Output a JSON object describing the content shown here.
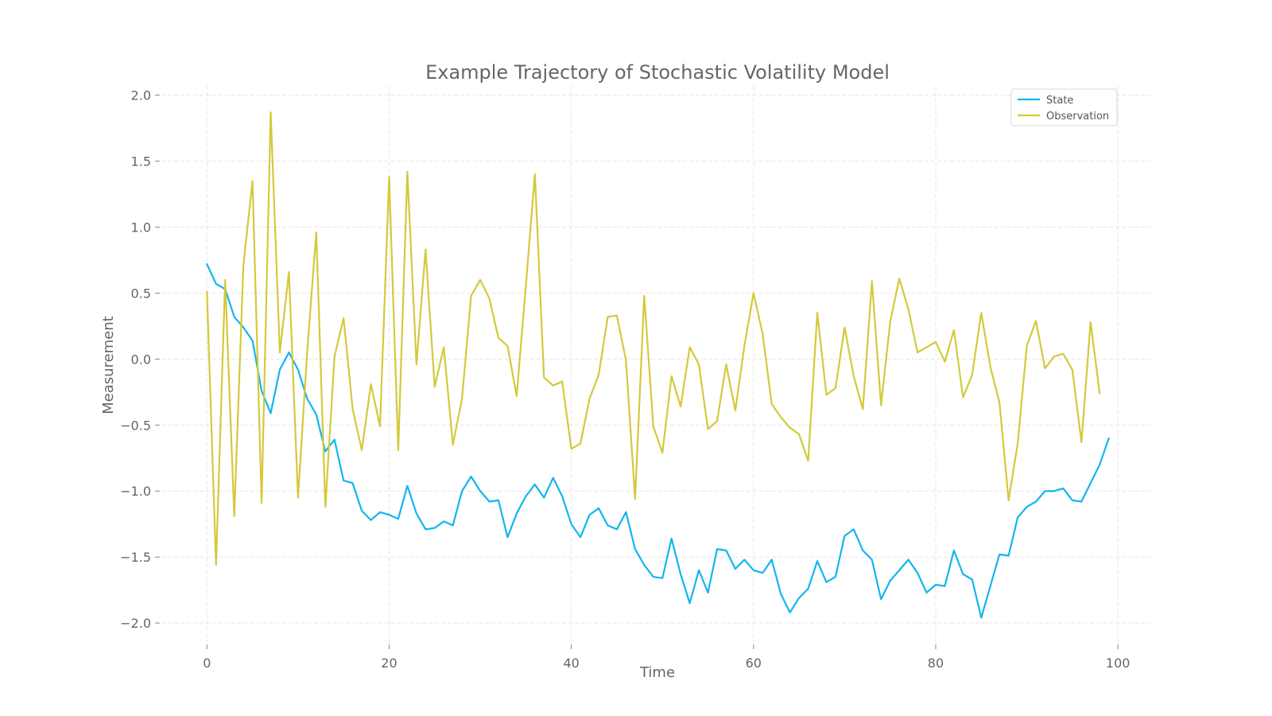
{
  "chart_data": {
    "type": "line",
    "title": "Example Trajectory of Stochastic Volatility Model",
    "xlabel": "Time",
    "ylabel": "Measurement",
    "xlim": [
      -5,
      104
    ],
    "ylim": [
      -2.15,
      2.07
    ],
    "xticks": [
      0,
      20,
      40,
      60,
      80,
      100
    ],
    "yticks": [
      -2.0,
      -1.5,
      -1.0,
      -0.5,
      0.0,
      0.5,
      1.0,
      1.5,
      2.0
    ],
    "xtick_labels": [
      "0",
      "20",
      "40",
      "60",
      "80",
      "100"
    ],
    "ytick_labels": [
      "−2.0",
      "−1.5",
      "−1.0",
      "−0.5",
      "0.0",
      "0.5",
      "1.0",
      "1.5",
      "2.0"
    ],
    "grid": true,
    "legend_position": "top-right",
    "series": [
      {
        "name": "State",
        "color": "#12b5f0",
        "values": [
          0.72,
          0.57,
          0.53,
          0.32,
          0.24,
          0.14,
          -0.24,
          -0.41,
          -0.08,
          0.05,
          -0.08,
          -0.3,
          -0.42,
          -0.7,
          -0.61,
          -0.92,
          -0.94,
          -1.15,
          -1.22,
          -1.16,
          -1.18,
          -1.21,
          -0.96,
          -1.17,
          -1.29,
          -1.28,
          -1.23,
          -1.26,
          -1.0,
          -0.89,
          -1.0,
          -1.08,
          -1.07,
          -1.35,
          -1.17,
          -1.04,
          -0.95,
          -1.05,
          -0.9,
          -1.04,
          -1.25,
          -1.35,
          -1.18,
          -1.13,
          -1.26,
          -1.29,
          -1.16,
          -1.44,
          -1.56,
          -1.65,
          -1.66,
          -1.36,
          -1.63,
          -1.85,
          -1.6,
          -1.77,
          -1.44,
          -1.45,
          -1.59,
          -1.52,
          -1.6,
          -1.62,
          -1.52,
          -1.78,
          -1.92,
          -1.81,
          -1.74,
          -1.53,
          -1.69,
          -1.65,
          -1.34,
          -1.29,
          -1.45,
          -1.52,
          -1.82,
          -1.68,
          -1.6,
          -1.52,
          -1.62,
          -1.77,
          -1.71,
          -1.72,
          -1.45,
          -1.63,
          -1.67,
          -1.96,
          -1.72,
          -1.48,
          -1.49,
          -1.2,
          -1.12,
          -1.08,
          -1.0,
          -1.0,
          -0.98,
          -1.07,
          -1.08,
          -0.94,
          -0.8,
          -0.6
        ]
      },
      {
        "name": "Observation",
        "color": "#d4c93a",
        "values": [
          0.51,
          -1.56,
          0.6,
          -1.19,
          0.71,
          1.35,
          -1.09,
          1.87,
          0.05,
          0.66,
          -1.05,
          0.05,
          0.96,
          -1.12,
          0.02,
          0.31,
          -0.38,
          -0.69,
          -0.19,
          -0.51,
          1.38,
          -0.69,
          1.42,
          -0.04,
          0.83,
          -0.21,
          0.09,
          -0.65,
          -0.3,
          0.48,
          0.6,
          0.46,
          0.16,
          0.1,
          -0.28,
          0.55,
          1.4,
          -0.14,
          -0.2,
          -0.17,
          -0.68,
          -0.64,
          -0.3,
          -0.12,
          0.32,
          0.33,
          -0.01,
          -1.06,
          0.48,
          -0.51,
          -0.71,
          -0.13,
          -0.36,
          0.09,
          -0.04,
          -0.53,
          -0.47,
          -0.04,
          -0.39,
          0.1,
          0.5,
          0.19,
          -0.34,
          -0.44,
          -0.52,
          -0.57,
          -0.77,
          0.35,
          -0.27,
          -0.22,
          0.24,
          -0.13,
          -0.38,
          0.59,
          -0.35,
          0.28,
          0.61,
          0.38,
          0.05,
          0.09,
          0.13,
          -0.02,
          0.22,
          -0.29,
          -0.12,
          0.35,
          -0.06,
          -0.33,
          -1.07,
          -0.64,
          0.1,
          0.29,
          -0.07,
          0.02,
          0.04,
          -0.08,
          -0.63,
          0.28,
          -0.26
        ]
      }
    ]
  }
}
